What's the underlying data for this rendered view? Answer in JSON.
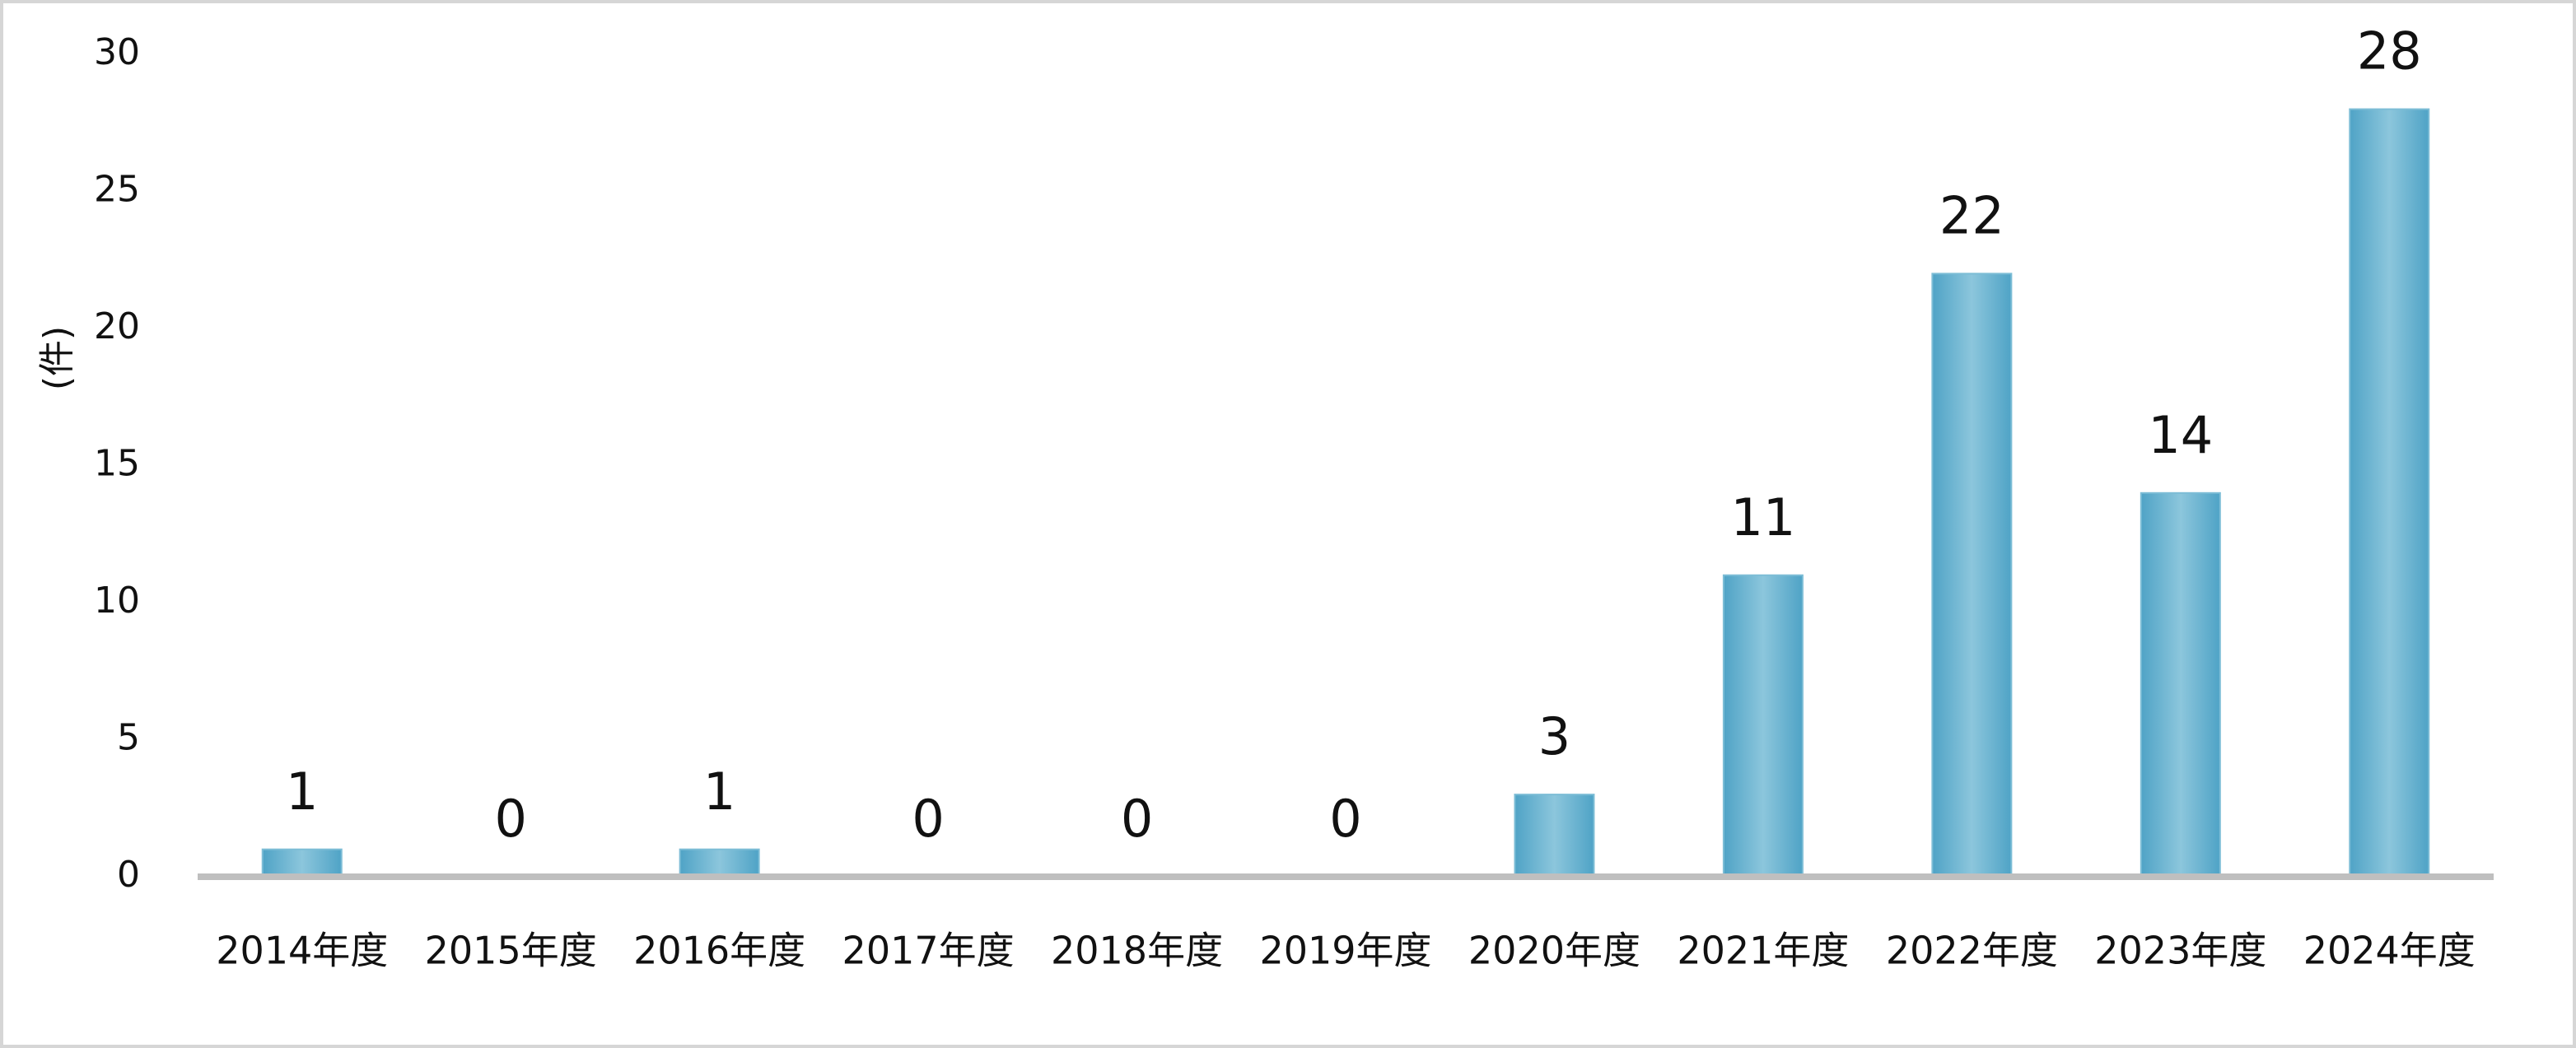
{
  "chart_data": {
    "type": "bar",
    "ylabel": "(件)",
    "categories": [
      "2014年度",
      "2015年度",
      "2016年度",
      "2017年度",
      "2018年度",
      "2019年度",
      "2020年度",
      "2021年度",
      "2022年度",
      "2023年度",
      "2024年度"
    ],
    "values": [
      1,
      0,
      1,
      0,
      0,
      0,
      3,
      11,
      22,
      14,
      28
    ],
    "color": "#7dbdd6",
    "ylim": [
      0,
      30
    ],
    "yticks": [
      0,
      5,
      10,
      15,
      20,
      25,
      30
    ],
    "grid": false,
    "value_labels_shown": true
  }
}
